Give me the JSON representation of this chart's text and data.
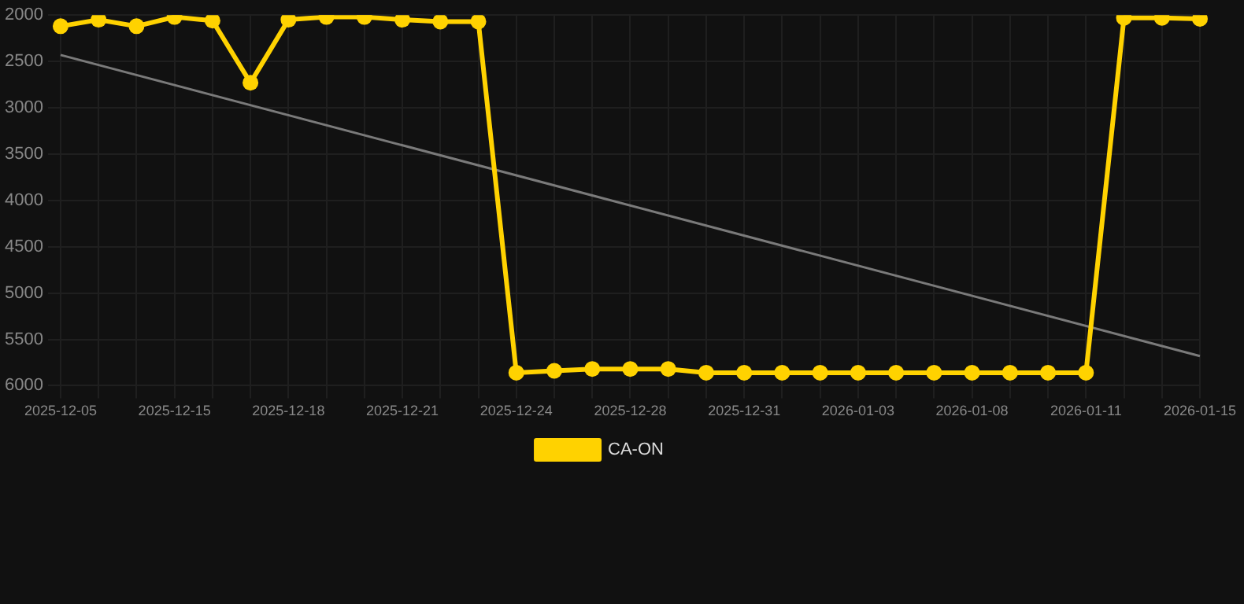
{
  "chart_data": {
    "type": "line",
    "categories": [
      "2025-12-05",
      null,
      null,
      "2025-12-15",
      null,
      null,
      "2025-12-18",
      null,
      null,
      "2025-12-21",
      null,
      null,
      "2025-12-24",
      null,
      null,
      "2025-12-28",
      null,
      null,
      "2025-12-31",
      null,
      null,
      "2026-01-03",
      null,
      null,
      "2026-01-08",
      null,
      null,
      "2026-01-11",
      null,
      null,
      "2026-01-15"
    ],
    "series": [
      {
        "name": "CA-ON",
        "color": "#ffd200",
        "marker": "circle",
        "values": [
          2120,
          2050,
          2120,
          2020,
          2060,
          2730,
          2050,
          2020,
          2020,
          2050,
          2070,
          2070,
          5860,
          5840,
          5820,
          5820,
          5820,
          5860,
          5860,
          5860,
          5860,
          5860,
          5860,
          5860,
          5860,
          5860,
          5860,
          5860,
          2030,
          2030,
          2040
        ]
      },
      {
        "color": "#7a7a7a",
        "marker": "none",
        "values": [
          2430,
          null,
          null,
          null,
          null,
          null,
          null,
          null,
          null,
          null,
          null,
          null,
          null,
          null,
          null,
          null,
          null,
          null,
          null,
          null,
          null,
          null,
          null,
          null,
          null,
          null,
          null,
          null,
          null,
          null,
          5680
        ]
      }
    ],
    "ylim": [
      6000,
      2000
    ],
    "yticks": [
      2000,
      2500,
      3000,
      3500,
      4000,
      4500,
      5000,
      5500,
      6000
    ],
    "grid": true,
    "legend": "bottom"
  }
}
